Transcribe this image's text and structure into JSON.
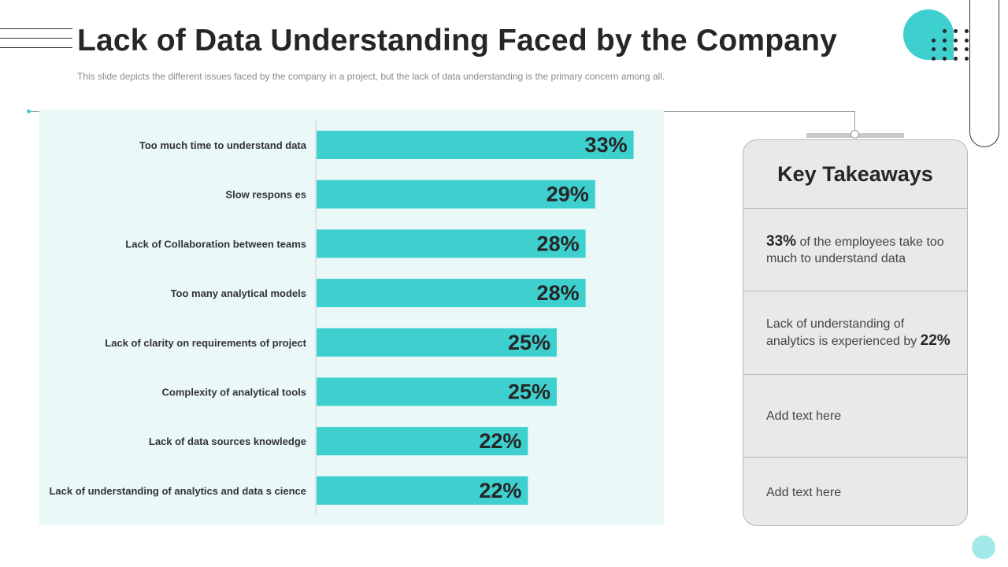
{
  "header": {
    "title": "Lack of Data Understanding Faced by the Company",
    "subtitle": "This slide depicts the different issues faced by the company in a project, but the lack of data understanding is the primary concern among all."
  },
  "colors": {
    "accent": "#3ecfcf",
    "chart_background": "#eaf8f8",
    "panel_background": "#e9e9e9"
  },
  "chart_data": {
    "type": "bar",
    "orientation": "horizontal",
    "categories": [
      "Too much time to understand data",
      "Slow respons es",
      "Lack of Collaboration between teams",
      "Too many analytical models",
      "Lack of clarity on requirements of project",
      "Complexity of analytical tools",
      "Lack of data sources knowledge",
      "Lack of understanding of analytics and data s cience"
    ],
    "values": [
      33,
      29,
      28,
      28,
      25,
      25,
      22,
      22
    ],
    "value_labels": [
      "33%",
      "29%",
      "28%",
      "28%",
      "25%",
      "25%",
      "22%",
      "22%"
    ],
    "unit": "%",
    "grid": false,
    "legend": "none",
    "bar_color": "#3ecfcf"
  },
  "takeaways": {
    "title": "Key Takeaways",
    "items": [
      {
        "highlight_first": "33%",
        "text": " of the employees take too much to understand data"
      },
      {
        "text": "Lack of understanding of analytics is experienced by ",
        "highlight_last": "22%"
      },
      {
        "text": "Add text here"
      },
      {
        "text": "Add text here"
      }
    ]
  }
}
